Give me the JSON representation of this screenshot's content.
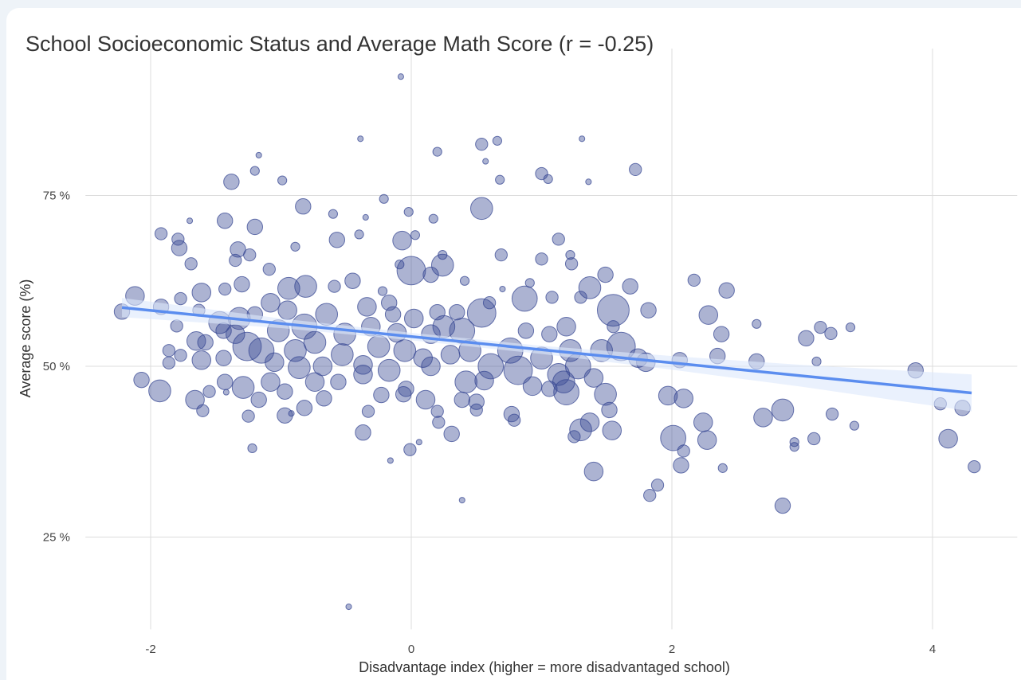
{
  "chart_data": {
    "type": "scatter",
    "title": "School Socioeconomic Status and Average Math Score (r = -0.25)",
    "x_label": "Disadvantage index (higher = more disadvantaged school)",
    "y_label": "Average score (%)",
    "xlim": [
      -2.5,
      4.65
    ],
    "ylim": [
      11.5,
      96.5
    ],
    "xticks": [
      -2,
      0,
      2,
      4
    ],
    "yticks": [
      {
        "value": 25,
        "label": "25 %"
      },
      {
        "value": 50,
        "label": "50 %"
      },
      {
        "value": 75,
        "label": "75 %"
      }
    ],
    "grid": true,
    "color": "#3a4a94",
    "x": [
      -0.08,
      -0.39,
      -1.17,
      0.2,
      0.54,
      0.66,
      0.57,
      1.31,
      1.72,
      1.0,
      1.05,
      0.68,
      1.36,
      -1.2,
      -1.38,
      -0.99,
      0.54,
      -0.21,
      -0.02,
      0.17,
      -0.35,
      -0.83,
      -0.6,
      -1.43,
      -1.2,
      -1.7,
      -1.92,
      -1.79,
      -1.78,
      -1.33,
      -1.24,
      -1.35,
      -1.69,
      -1.09,
      -0.89,
      -0.57,
      -0.4,
      -0.07,
      0.03,
      1.13,
      0.69,
      1.0,
      1.22,
      1.23,
      0,
      0.24,
      0.15,
      -0.09,
      0.24,
      0.41,
      1.49,
      1.37,
      1.68,
      2.17,
      2.42,
      0.91,
      0.7,
      1.3,
      1.08,
      0.87,
      0.6,
      -0.22,
      -0.45,
      -0.59,
      -0.94,
      -0.81,
      -1.61,
      -1.43,
      -1.3,
      -2.12,
      -1.77,
      -2.22,
      -1.92,
      -1.8,
      -1.47,
      -1.63,
      -1.08,
      -1.2,
      -0.95,
      -0.65,
      -0.82,
      -1.02,
      -1.35,
      -1.32,
      -1.26,
      -1.44,
      -1.58,
      -1.65,
      -1.86,
      -1.77,
      -1.61,
      -1.86,
      -1.44,
      -1.15,
      -1.05,
      -0.89,
      -0.74,
      -0.86,
      -0.68,
      -0.53,
      -0.37,
      -0.51,
      -0.31,
      -0.34,
      -0.17,
      -0.14,
      -0.11,
      -0.25,
      -0.05,
      0.09,
      0.02,
      0.15,
      0.2,
      0.35,
      0.25,
      0.39,
      0.54,
      0.45,
      0.3,
      0.15,
      0.42,
      0.56,
      0.61,
      0.76,
      0.82,
      1.0,
      0.88,
      1.06,
      1.19,
      1.22,
      1.28,
      1.17,
      0.93,
      1.13,
      1.06,
      1.19,
      1.4,
      1.46,
      1.55,
      1.61,
      1.55,
      1.74,
      1.8,
      1.82,
      2.06,
      2.28,
      2.38,
      2.35,
      2.65,
      2.65,
      3.03,
      3.14,
      3.22,
      3.37,
      3.11,
      3.87,
      4.06,
      4.23,
      4.12,
      4.32,
      2.85,
      2.7,
      3.23,
      3.4,
      3.09,
      2.94,
      2.94,
      2.85,
      2.39,
      2.24,
      2.27,
      2.01,
      2.07,
      2.09,
      1.89,
      1.83,
      2.09,
      1.97,
      1.4,
      1.54,
      1.37,
      1.3,
      1.25,
      1.52,
      1.49,
      0.77,
      0.79,
      0.5,
      0.39,
      0.5,
      0.31,
      0.21,
      0.2,
      0.11,
      -0.06,
      -0.04,
      -0.23,
      -0.33,
      -0.37,
      -0.01,
      0.06,
      -0.16,
      0.39,
      -0.48,
      -1.22,
      -1.25,
      -0.97,
      -0.92,
      -0.82,
      -0.67,
      -0.97,
      -1.17,
      -1.29,
      -1.55,
      -1.66,
      -1.6,
      -1.93,
      -2.07,
      -1.43,
      -1.42,
      -1.08,
      -0.56,
      -0.37,
      -0.17,
      -0.74
    ],
    "y": [
      92.4,
      83.3,
      80.9,
      81.4,
      82.5,
      83.0,
      80.0,
      83.3,
      78.8,
      78.2,
      77.4,
      77.3,
      77.0,
      78.6,
      77.0,
      77.2,
      73.1,
      74.5,
      72.6,
      71.6,
      71.8,
      73.4,
      72.3,
      71.3,
      70.4,
      71.3,
      69.4,
      68.6,
      67.3,
      67.1,
      66.3,
      65.5,
      65.0,
      64.2,
      67.5,
      68.5,
      69.3,
      68.4,
      69.2,
      68.6,
      66.3,
      65.7,
      66.3,
      65.0,
      64.0,
      64.8,
      63.4,
      64.9,
      66.3,
      62.5,
      63.4,
      61.5,
      61.7,
      62.6,
      61.1,
      62.2,
      61.3,
      60.1,
      60.1,
      59.9,
      59.3,
      61.0,
      62.5,
      61.7,
      61.4,
      61.7,
      60.8,
      61.3,
      62.0,
      60.3,
      59.9,
      58.0,
      58.7,
      55.9,
      56.4,
      58.2,
      59.3,
      57.6,
      58.2,
      57.6,
      55.8,
      55.2,
      54.7,
      57.0,
      52.9,
      55.2,
      53.5,
      53.7,
      52.3,
      51.6,
      50.9,
      50.5,
      51.2,
      52.3,
      50.6,
      52.3,
      53.5,
      49.8,
      50.0,
      51.7,
      50.2,
      54.7,
      55.8,
      58.7,
      59.3,
      57.6,
      54.9,
      52.9,
      52.3,
      51.2,
      57.0,
      54.7,
      57.9,
      57.9,
      55.8,
      55.2,
      57.8,
      52.3,
      51.7,
      50.0,
      47.7,
      47.9,
      50.0,
      52.3,
      49.4,
      51.2,
      55.2,
      54.7,
      55.8,
      52.3,
      50.0,
      47.7,
      47.1,
      48.8,
      46.7,
      46.2,
      48.3,
      52.3,
      58.2,
      52.9,
      55.8,
      51.2,
      50.6,
      58.2,
      50.9,
      57.5,
      54.7,
      51.5,
      56.2,
      50.7,
      54.1,
      55.7,
      54.8,
      55.7,
      50.7,
      49.4,
      44.5,
      43.9,
      39.4,
      35.3,
      43.6,
      42.5,
      43.0,
      41.3,
      39.4,
      38.9,
      38.2,
      29.6,
      35.1,
      41.8,
      39.2,
      39.5,
      35.5,
      37.6,
      32.6,
      31.1,
      45.3,
      45.7,
      34.6,
      40.6,
      41.8,
      40.7,
      39.7,
      43.6,
      45.9,
      43.0,
      42.1,
      44.8,
      45.1,
      43.6,
      40.1,
      41.8,
      43.4,
      45.1,
      45.9,
      46.7,
      45.8,
      43.4,
      40.3,
      37.8,
      38.9,
      36.2,
      30.4,
      14.8,
      38.0,
      42.7,
      42.8,
      43.1,
      43.9,
      45.3,
      46.3,
      45.1,
      46.9,
      46.3,
      45.1,
      43.5,
      46.4,
      48.0,
      47.7,
      46.2,
      47.7,
      47.7,
      48.8,
      49.4,
      47.7
    ],
    "sizes": [
      1,
      1,
      1,
      2,
      3,
      2,
      1,
      1,
      3,
      3,
      2,
      2,
      1,
      2,
      4,
      2,
      6,
      2,
      2,
      2,
      1,
      4,
      2,
      4,
      4,
      1,
      3,
      3,
      4,
      4,
      3,
      3,
      3,
      3,
      2,
      4,
      2,
      5,
      2,
      3,
      3,
      3,
      2,
      3,
      8,
      6,
      4,
      2,
      2,
      2,
      4,
      6,
      4,
      3,
      4,
      2,
      1,
      3,
      3,
      7,
      3,
      2,
      4,
      3,
      6,
      6,
      5,
      3,
      4,
      5,
      3,
      4,
      4,
      3,
      6,
      3,
      5,
      4,
      5,
      6,
      7,
      6,
      5,
      6,
      8,
      4,
      4,
      5,
      3,
      3,
      5,
      3,
      4,
      7,
      5,
      6,
      6,
      6,
      5,
      6,
      5,
      6,
      5,
      5,
      4,
      4,
      5,
      6,
      6,
      5,
      5,
      5,
      4,
      4,
      6,
      7,
      8,
      6,
      5,
      5,
      6,
      5,
      7,
      7,
      8,
      6,
      4,
      4,
      5,
      6,
      7,
      6,
      5,
      6,
      4,
      7,
      5,
      6,
      9,
      8,
      3,
      5,
      5,
      4,
      4,
      5,
      4,
      4,
      2,
      4,
      4,
      3,
      3,
      2,
      2,
      4,
      3,
      4,
      5,
      3,
      6,
      5,
      3,
      2,
      3,
      2,
      2,
      4,
      2,
      5,
      5,
      7,
      4,
      3,
      3,
      3,
      5,
      5,
      5,
      5,
      5,
      6,
      3,
      4,
      6,
      4,
      3,
      4,
      4,
      3,
      4,
      3,
      3,
      5,
      4,
      4,
      4,
      3,
      4,
      3,
      1,
      1,
      1,
      1,
      2,
      3,
      4,
      1,
      4,
      4,
      4,
      4,
      6,
      3,
      5,
      3,
      6,
      4,
      4,
      1,
      5,
      4,
      5,
      6,
      5
    ],
    "trend": {
      "x": [
        -2.22,
        4.3
      ],
      "y": [
        58.6,
        46.1
      ],
      "color": "#5b8def"
    },
    "band": {
      "x": [
        -2.22,
        -1,
        0,
        1,
        2,
        3,
        4.3
      ],
      "lower": [
        57.2,
        55.6,
        53.8,
        51.8,
        49.5,
        47.0,
        43.4
      ],
      "upper": [
        60.0,
        57.0,
        54.9,
        53.0,
        51.5,
        50.2,
        48.8
      ],
      "color": "#dce8fb"
    }
  }
}
